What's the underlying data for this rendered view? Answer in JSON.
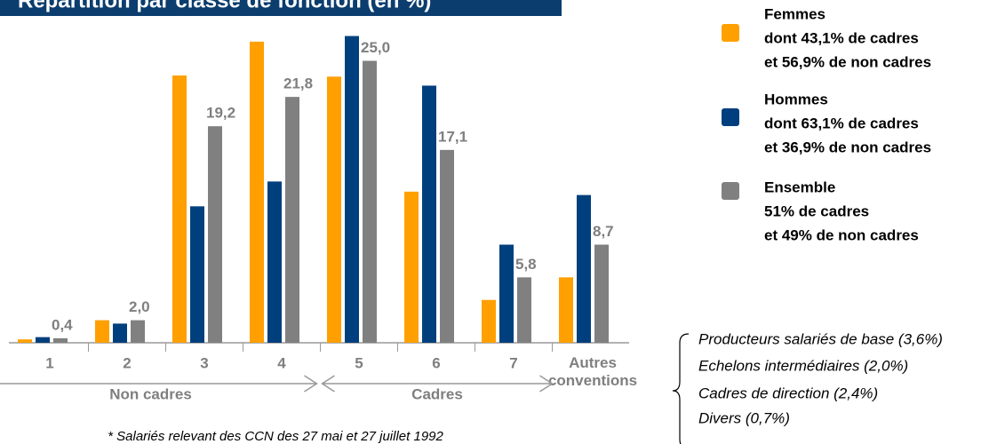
{
  "chart_data": {
    "type": "bar",
    "title": "Répartition par classe de fonction (en %)",
    "categories": [
      "1",
      "2",
      "3",
      "4",
      "5",
      "6",
      "7",
      "Autres conventions"
    ],
    "groups": [
      {
        "label": "Non cadres",
        "from": 0,
        "to": 3
      },
      {
        "label": "Cadres",
        "from": 4,
        "to": 6
      }
    ],
    "series": [
      {
        "name": "Femmes",
        "description": [
          "dont 43,1% de cadres",
          "et 56,9% de non cadres"
        ],
        "color": "#ffa000",
        "values": [
          0.3,
          2.0,
          23.7,
          26.7,
          23.6,
          13.4,
          3.8,
          5.8
        ]
      },
      {
        "name": "Hommes",
        "description": [
          "dont 63,1% de cadres",
          "et 36,9% de non cadres"
        ],
        "color": "#003f7d",
        "values": [
          0.5,
          1.7,
          12.1,
          14.3,
          27.2,
          22.8,
          8.7,
          13.1
        ]
      },
      {
        "name": "Ensemble",
        "description": [
          "51% de cadres",
          "et 49% de non cadres"
        ],
        "color": "#808080",
        "values": [
          0.4,
          2.0,
          19.2,
          21.8,
          25.0,
          17.1,
          5.8,
          8.7
        ],
        "value_labels": [
          "0,4",
          "2,0",
          "19,2",
          "21,8",
          "25,0",
          "17,1",
          "5,8",
          "8,7"
        ]
      }
    ],
    "ylim": [
      0,
      30
    ],
    "annotations": [
      "Producteurs salariés de base (3,6%)",
      "Echelons intermédiaires (2,0%)",
      "Cadres de direction (2,4%)",
      "Divers (0,7%)"
    ],
    "footnote": "* Salariés relevant des CCN des 27 mai et 27 juillet 1992"
  }
}
